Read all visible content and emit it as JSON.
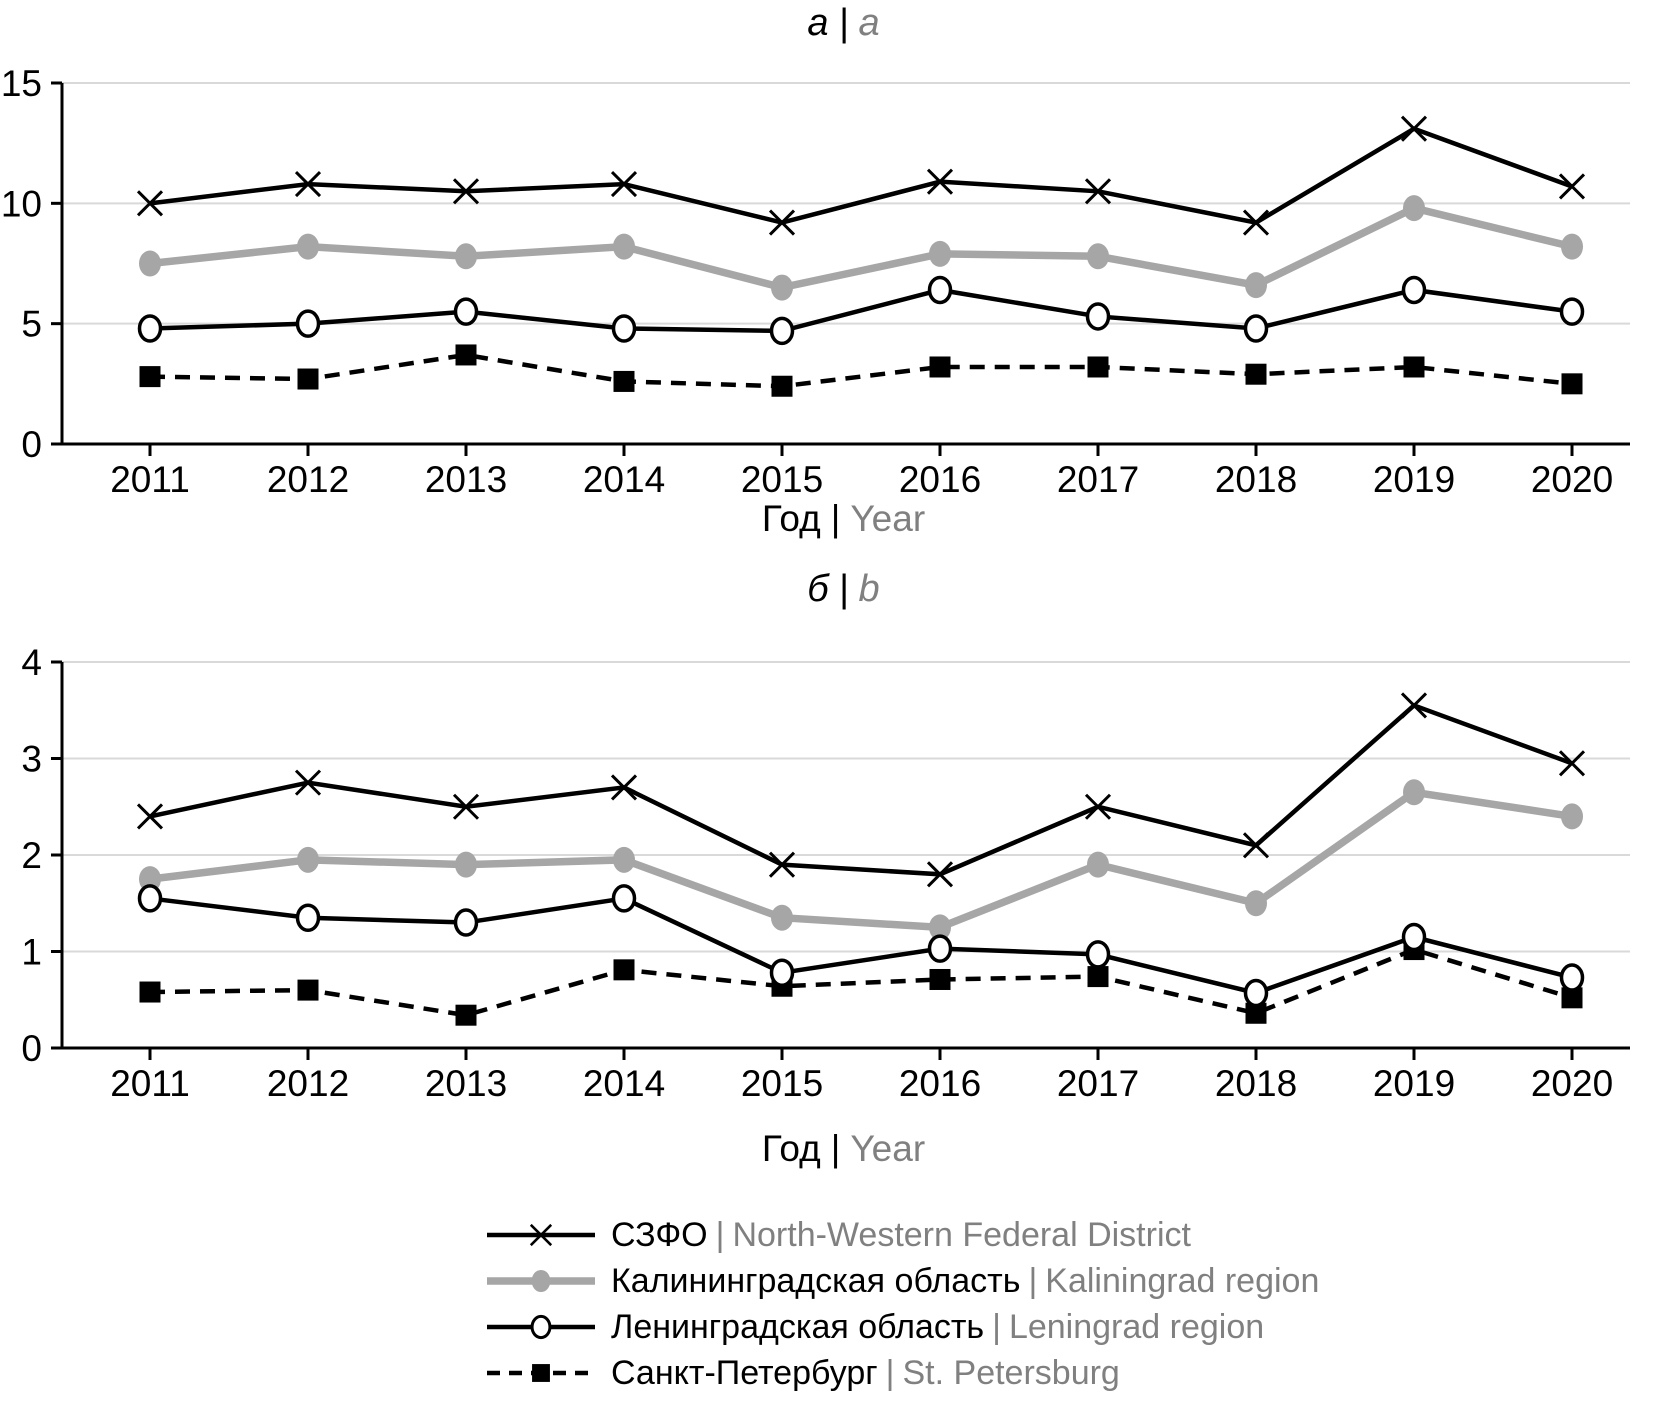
{
  "colors": {
    "black": "#000000",
    "series_gray": "#a6a6a6",
    "grid": "#d9d9d9",
    "secondary_text": "#808080",
    "background": "#ffffff"
  },
  "panels": [
    {
      "title_ru": "а",
      "sep": "|",
      "title_en": "a",
      "xaxis_label_ru": "Год",
      "xaxis_label_en": "Year"
    },
    {
      "title_ru": "б",
      "sep": "|",
      "title_en": "b",
      "xaxis_label_ru": "Год",
      "xaxis_label_en": "Year"
    }
  ],
  "legend": {
    "position": "bottom",
    "items": [
      {
        "key": "szfo",
        "ru": "СЗФО",
        "sep": "|",
        "en": "North-Western Federal District"
      },
      {
        "key": "kaliningrad",
        "ru": "Калининградская область",
        "sep": "|",
        "en": "Kaliningrad region"
      },
      {
        "key": "leningrad",
        "ru": "Ленинградская область",
        "sep": "|",
        "en": "Leningrad region"
      },
      {
        "key": "spb",
        "ru": "Санкт-Петербург",
        "sep": "|",
        "en": "St. Petersburg"
      }
    ]
  },
  "chart_data": [
    {
      "type": "line",
      "title": "а | a",
      "xlabel": "Год | Year",
      "ylabel": "",
      "x": [
        2011,
        2012,
        2013,
        2014,
        2015,
        2016,
        2017,
        2018,
        2019,
        2020
      ],
      "ylim": [
        0,
        15
      ],
      "yticks": [
        0,
        5,
        10,
        15
      ],
      "grid": true,
      "series": [
        {
          "key": "szfo",
          "name": "СЗФО | North-Western Federal District",
          "color": "#000000",
          "line": "solid",
          "marker": "x-cross",
          "values": [
            10.0,
            10.8,
            10.5,
            10.8,
            9.2,
            10.9,
            10.5,
            9.2,
            13.1,
            10.7
          ]
        },
        {
          "key": "kaliningrad",
          "name": "Калининградская область | Kaliningrad region",
          "color": "#a6a6a6",
          "line": "solid-thick",
          "marker": "circle-filled",
          "values": [
            7.5,
            8.2,
            7.8,
            8.2,
            6.5,
            7.9,
            7.8,
            6.6,
            9.8,
            8.2
          ]
        },
        {
          "key": "leningrad",
          "name": "Ленинградская область | Leningrad region",
          "color": "#000000",
          "line": "solid",
          "marker": "circle-open",
          "values": [
            4.8,
            5.0,
            5.5,
            4.8,
            4.7,
            6.4,
            5.3,
            4.8,
            6.4,
            5.5
          ]
        },
        {
          "key": "spb",
          "name": "Санкт-Петербург | St. Petersburg",
          "color": "#000000",
          "line": "dashed",
          "marker": "square-filled",
          "values": [
            2.8,
            2.7,
            3.7,
            2.6,
            2.4,
            3.2,
            3.2,
            2.9,
            3.2,
            2.5
          ]
        }
      ]
    },
    {
      "type": "line",
      "title": "б | b",
      "xlabel": "Год | Year",
      "ylabel": "",
      "x": [
        2011,
        2012,
        2013,
        2014,
        2015,
        2016,
        2017,
        2018,
        2019,
        2020
      ],
      "ylim": [
        0,
        4
      ],
      "yticks": [
        0,
        1,
        2,
        3,
        4
      ],
      "grid": true,
      "series": [
        {
          "key": "szfo",
          "name": "СЗФО | North-Western Federal District",
          "color": "#000000",
          "line": "solid",
          "marker": "x-cross",
          "values": [
            2.4,
            2.75,
            2.5,
            2.7,
            1.9,
            1.8,
            2.5,
            2.1,
            3.55,
            2.95
          ]
        },
        {
          "key": "kaliningrad",
          "name": "Калининградская область | Kaliningrad region",
          "color": "#a6a6a6",
          "line": "solid-thick",
          "marker": "circle-filled",
          "values": [
            1.75,
            1.95,
            1.9,
            1.95,
            1.35,
            1.25,
            1.9,
            1.5,
            2.65,
            2.4
          ]
        },
        {
          "key": "leningrad",
          "name": "Ленинградская область | Leningrad region",
          "color": "#000000",
          "line": "solid",
          "marker": "circle-open",
          "values": [
            1.55,
            1.35,
            1.3,
            1.55,
            0.78,
            1.03,
            0.97,
            0.57,
            1.15,
            0.73
          ]
        },
        {
          "key": "spb",
          "name": "Санкт-Петербург | St. Petersburg",
          "color": "#000000",
          "line": "dashed",
          "marker": "square-filled",
          "values": [
            0.58,
            0.6,
            0.34,
            0.81,
            0.64,
            0.71,
            0.74,
            0.36,
            1.02,
            0.52
          ]
        }
      ]
    }
  ]
}
